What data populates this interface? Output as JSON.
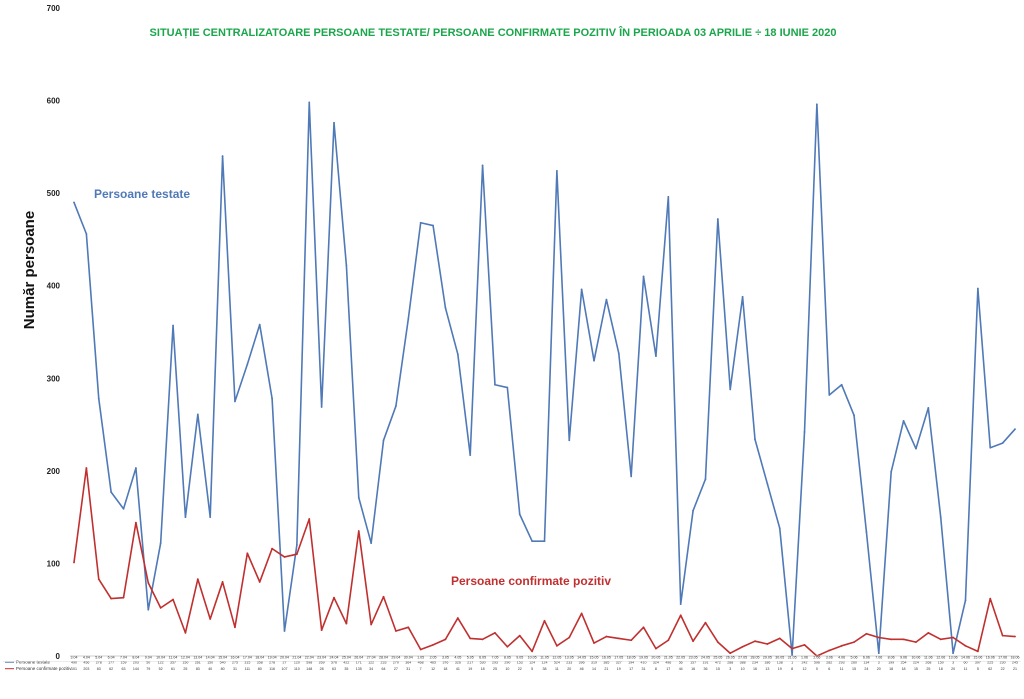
{
  "chart_data": {
    "type": "line",
    "title": "SITUAȚIE CENTRALIZATOARE PERSOANE TESTATE/ PERSOANE CONFIRMATE POZITIV ÎN PERIOADA 03 APRILIE ÷ 18 IUNIE 2020",
    "ylabel": "Număr persoane",
    "xlabel": "",
    "ylim": [
      0,
      700
    ],
    "yticks": [
      "0",
      "100",
      "200",
      "300",
      "400",
      "500",
      "600",
      "700"
    ],
    "grid": false,
    "legend": "bottom-left",
    "annotations": {
      "tested": "Persoane testate",
      "positive": "Persoane confirmate pozitiv"
    },
    "categories": [
      "3.04",
      "4.04",
      "5.04",
      "6.04",
      "7.04",
      "8.04",
      "9.04",
      "10.04",
      "11.04",
      "12.04",
      "13.04",
      "14.04",
      "15.04",
      "16.04",
      "17.04",
      "18.04",
      "19.04",
      "20.04",
      "21.04",
      "22.04",
      "23.04",
      "24.04",
      "25.04",
      "26.04",
      "27.04",
      "28.04",
      "29.04",
      "30.04",
      "1.05",
      "2.05",
      "3.05",
      "4.05",
      "5.05",
      "6.05",
      "7.05",
      "8.05",
      "9.05",
      "10.05",
      "11.05",
      "12.05",
      "13.05",
      "14.05",
      "15.05",
      "16.05",
      "17.05",
      "18.05",
      "19.05",
      "20.05",
      "21.05",
      "22.05",
      "23.05",
      "24.05",
      "25.05",
      "26.05",
      "27.05",
      "28.05",
      "29.05",
      "30.05",
      "31.05",
      "1.06",
      "2.06",
      "3.06",
      "4.06",
      "5.06",
      "6.06",
      "7.06",
      "8.06",
      "9.06",
      "10.06",
      "11.06",
      "12.06",
      "13.06",
      "14.06",
      "15.06",
      "16.06",
      "17.06",
      "18.06"
    ],
    "series": [
      {
        "name": "Persoane testate",
        "color": "#4f79b7",
        "values": [
          490,
          456,
          278,
          177,
          159,
          203,
          50,
          122,
          357,
          150,
          261,
          150,
          540,
          275,
          315,
          358,
          278,
          27,
          120,
          598,
          269,
          576,
          422,
          171,
          122,
          233,
          270,
          364,
          468,
          465,
          376,
          326,
          217,
          530,
          293,
          290,
          153,
          124,
          124,
          524,
          233,
          396,
          319,
          385,
          327,
          194,
          410,
          324,
          496,
          56,
          157,
          191,
          472,
          288,
          388,
          234,
          186,
          138,
          1,
          242,
          596,
          282,
          293,
          260,
          134,
          3,
          199,
          254,
          224,
          268,
          150,
          3,
          60,
          397,
          225,
          230,
          245
        ]
      },
      {
        "name": "Persoane confirmate pozitiv",
        "color": "#c0302f",
        "values": [
          101,
          203,
          83,
          62,
          63,
          144,
          79,
          52,
          61,
          25,
          83,
          40,
          80,
          31,
          111,
          80,
          116,
          107,
          110,
          148,
          28,
          63,
          35,
          135,
          34,
          64,
          27,
          31,
          7,
          12,
          18,
          41,
          19,
          18,
          25,
          10,
          22,
          5,
          38,
          11,
          20,
          46,
          14,
          21,
          19,
          17,
          31,
          8,
          17,
          44,
          16,
          36,
          15,
          3,
          10,
          16,
          13,
          19,
          8,
          12,
          0,
          6,
          11,
          15,
          24,
          20,
          18,
          18,
          15,
          25,
          18,
          20,
          11,
          5,
          62,
          22,
          21
        ]
      }
    ]
  }
}
